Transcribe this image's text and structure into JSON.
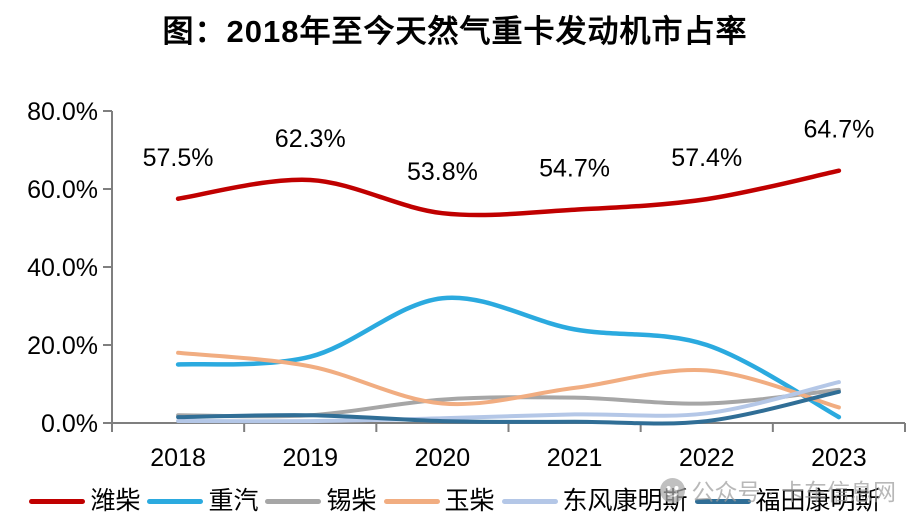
{
  "title": "图：2018年至今天然气重卡发动机市占率",
  "watermark": {
    "text": "公众号 · 卡车信息网",
    "icon": "person-circle-icon"
  },
  "colors": {
    "axis": "#7F7F7F",
    "text": "#000000",
    "weichai_red": "#C00000",
    "sinotruk_cyan": "#2BAADF",
    "xichai_gray": "#A6A6A6",
    "yuchai_orange": "#F1AD81",
    "dongfeng_lavender": "#B4C7E7",
    "futian_steel": "#306E96"
  },
  "chart_data": {
    "type": "line",
    "title": "图：2018年至今天然气重卡发动机市占率",
    "x": [
      "2018",
      "2019",
      "2020",
      "2021",
      "2022",
      "2023"
    ],
    "xlabel": "",
    "ylabel": "",
    "ylim": [
      0,
      80
    ],
    "grid": false,
    "legend_position": "bottom",
    "line_style": "smooth",
    "y_ticks": [
      {
        "v": 80,
        "label": "80.0%"
      },
      {
        "v": 60,
        "label": "60.0%"
      },
      {
        "v": 40,
        "label": "40.0%"
      },
      {
        "v": 20,
        "label": "20.0%"
      },
      {
        "v": 0,
        "label": "0.0%"
      }
    ],
    "series": [
      {
        "name": "潍柴",
        "color": "#C00000",
        "width": 4.5,
        "values": [
          57.5,
          62.3,
          53.8,
          54.7,
          57.4,
          64.7
        ],
        "data_labels": [
          "57.5%",
          "62.3%",
          "53.8%",
          "54.7%",
          "57.4%",
          "64.7%"
        ]
      },
      {
        "name": "重汽",
        "color": "#2BAADF",
        "width": 4.5,
        "values": [
          15,
          17,
          32,
          24,
          20,
          1.5
        ]
      },
      {
        "name": "锡柴",
        "color": "#A6A6A6",
        "width": 4,
        "values": [
          2,
          2,
          6,
          6.5,
          5,
          8.5
        ]
      },
      {
        "name": "玉柴",
        "color": "#F1AD81",
        "width": 4,
        "values": [
          18,
          14.5,
          5,
          9,
          13.5,
          4
        ]
      },
      {
        "name": "东风康明斯",
        "color": "#B4C7E7",
        "width": 4,
        "values": [
          0.5,
          0.5,
          1.2,
          2.2,
          2.5,
          10.5
        ]
      },
      {
        "name": "福田康明斯",
        "color": "#306E96",
        "width": 4,
        "values": [
          1.5,
          2,
          0.5,
          0.3,
          0.5,
          8
        ]
      }
    ]
  }
}
